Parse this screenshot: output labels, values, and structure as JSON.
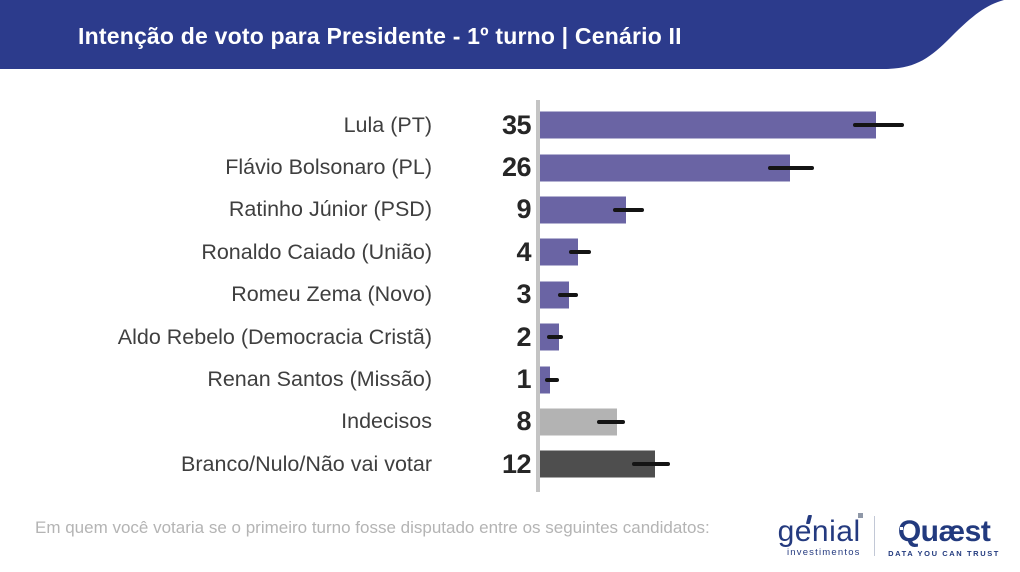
{
  "header": {
    "title": "Intenção de voto para Presidente - 1º turno | Cenário II",
    "background_color": "#2c3b8c",
    "text_color": "#ffffff"
  },
  "chart_data": {
    "type": "bar",
    "orientation": "horizontal",
    "value_unit": "percent",
    "xlim": [
      0,
      50
    ],
    "grid": false,
    "legend": false,
    "axis_line_color": "#c4c4c4",
    "error_bar_color": "#141414",
    "bar_color_default": "#6a64a4",
    "items": [
      {
        "label": "Lula (PT)",
        "value": 35,
        "error_low": 32.6,
        "error_high": 37.9,
        "color": "#6a64a4"
      },
      {
        "label": "Flávio Bolsonaro (PL)",
        "value": 26,
        "error_low": 23.8,
        "error_high": 28.5,
        "color": "#6a64a4"
      },
      {
        "label": "Ratinho Júnior (PSD)",
        "value": 9,
        "error_low": 7.6,
        "error_high": 10.8,
        "color": "#6a64a4"
      },
      {
        "label": "Ronaldo Caiado (União)",
        "value": 4,
        "error_low": 3.0,
        "error_high": 5.3,
        "color": "#6a64a4"
      },
      {
        "label": "Romeu Zema (Novo)",
        "value": 3,
        "error_low": 1.9,
        "error_high": 4.0,
        "color": "#6a64a4"
      },
      {
        "label": "Aldo Rebelo (Democracia Cristã)",
        "value": 2,
        "error_low": 0.7,
        "error_high": 2.4,
        "color": "#6a64a4"
      },
      {
        "label": "Renan Santos (Missão)",
        "value": 1,
        "error_low": 0.5,
        "error_high": 2.0,
        "color": "#6a64a4"
      },
      {
        "label": "Indecisos",
        "value": 8,
        "error_low": 5.9,
        "error_high": 8.9,
        "color": "#b3b3b3"
      },
      {
        "label": "Branco/Nulo/Não vai votar",
        "value": 12,
        "error_low": 9.6,
        "error_high": 13.5,
        "color": "#4e4e4e"
      }
    ]
  },
  "footer": {
    "question": "Em quem você votaria se o primeiro turno fosse disputado entre os seguintes candidatos:"
  },
  "branding": {
    "genial": {
      "name": "genial",
      "subtitle": "investimentos",
      "color": "#243a7f"
    },
    "quaest": {
      "name": "Quæst",
      "tagline": "DATA YOU CAN TRUST",
      "color": "#223a7e"
    }
  }
}
